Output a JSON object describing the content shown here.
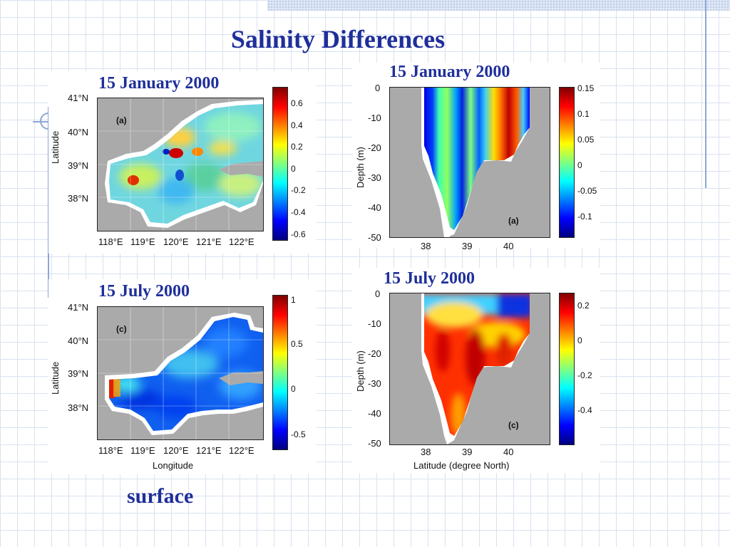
{
  "slide": {
    "title": "Salinity Differences",
    "footer_label": "surface",
    "accent_color": "#1f2f9a"
  },
  "panels": {
    "jan_surface": {
      "date": "15 January 2000",
      "sub_label": "(a)",
      "y_axis_label": "Latitude",
      "y_ticks": [
        "41°N",
        "40°N",
        "39°N",
        "38°N"
      ],
      "x_ticks": [
        "118°E",
        "119°E",
        "120°E",
        "121°E",
        "122°E"
      ],
      "colorbar_ticks": [
        "0.6",
        "0.4",
        "0.2",
        "0",
        "-0.2",
        "-0.4",
        "-0.6"
      ]
    },
    "jan_section": {
      "date": "15 January 2000",
      "sub_label": "(a)",
      "y_axis_label": "Depth (m)",
      "y_ticks": [
        "0",
        "-10",
        "-20",
        "-30",
        "-40",
        "-50"
      ],
      "x_ticks": [
        "38",
        "39",
        "40"
      ],
      "colorbar_ticks": [
        "0.15",
        "0.1",
        "0.05",
        "0",
        "-0.05",
        "-0.1"
      ]
    },
    "jul_surface": {
      "date": "15 July 2000",
      "sub_label": "(c)",
      "y_axis_label": "Latitude",
      "x_axis_label": "Longitude",
      "y_ticks": [
        "41°N",
        "40°N",
        "39°N",
        "38°N"
      ],
      "x_ticks": [
        "118°E",
        "119°E",
        "120°E",
        "121°E",
        "122°E"
      ],
      "colorbar_ticks": [
        "1",
        "0.5",
        "0",
        "-0.5"
      ]
    },
    "jul_section": {
      "date": "15 July 2000",
      "sub_label": "(c)",
      "y_axis_label": "Depth (m)",
      "x_axis_label": "Latitude (degree North)",
      "y_ticks": [
        "0",
        "-10",
        "-20",
        "-30",
        "-40",
        "-50"
      ],
      "x_ticks": [
        "38",
        "39",
        "40"
      ],
      "colorbar_ticks": [
        "0.2",
        "0",
        "-0.2",
        "-0.4"
      ]
    }
  }
}
